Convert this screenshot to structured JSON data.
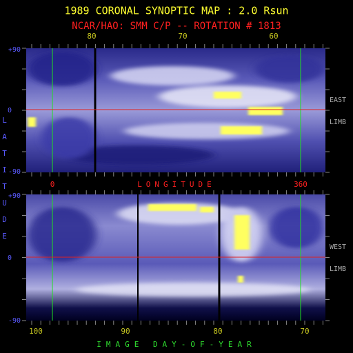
{
  "header": {
    "title": "1989 CORONAL SYNOPTIC MAP : 2.0 Rsun",
    "subtitle": "NCAR/HAO: SMM C/P -- ROTATION # 1813"
  },
  "top_panel": {
    "top_axis_labels": [
      "80",
      "70",
      "60"
    ],
    "lat_labels": [
      "+90",
      "0",
      "-90"
    ],
    "side_labels": [
      "EAST",
      "LIMB"
    ]
  },
  "longitude_axis": {
    "start": "0",
    "label": "LONGITUDE",
    "end": "360"
  },
  "latitude_label": "LATITUDE",
  "bottom_panel": {
    "lat_labels": [
      "+90",
      "0",
      "-90"
    ],
    "side_labels": [
      "WEST",
      "LIMB"
    ],
    "day_labels": [
      "100",
      "90",
      "80",
      "70"
    ]
  },
  "day_axis_label": "IMAGE DAY-OF-YEAR"
}
